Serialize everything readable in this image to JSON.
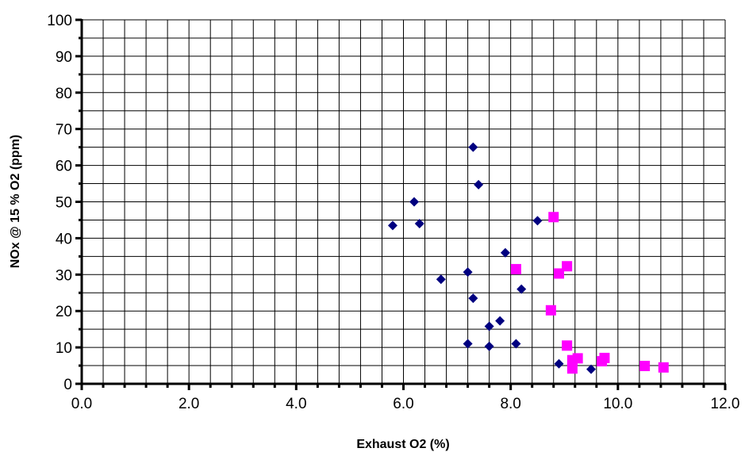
{
  "chart_data": {
    "type": "scatter",
    "title": "",
    "xlabel": "Exhaust O2 (%)",
    "ylabel": "NOx @ 15 % O2 (ppm)",
    "xlim": [
      0,
      12
    ],
    "ylim": [
      0,
      100
    ],
    "x_ticks": [
      "0.0",
      "2.0",
      "4.0",
      "6.0",
      "8.0",
      "10.0",
      "12.0"
    ],
    "y_ticks": [
      "0",
      "10",
      "20",
      "30",
      "40",
      "50",
      "60",
      "70",
      "80",
      "90",
      "100"
    ],
    "grid": true,
    "legend": "none",
    "series": [
      {
        "marker": "diamond",
        "color": "#000080",
        "points": [
          [
            5.8,
            43.5
          ],
          [
            6.2,
            50.0
          ],
          [
            6.3,
            44.0
          ],
          [
            6.7,
            28.7
          ],
          [
            7.2,
            30.7
          ],
          [
            7.2,
            11.0
          ],
          [
            7.3,
            65.0
          ],
          [
            7.3,
            23.5
          ],
          [
            7.4,
            54.7
          ],
          [
            7.6,
            15.8
          ],
          [
            7.6,
            10.3
          ],
          [
            7.8,
            17.3
          ],
          [
            7.9,
            36.0
          ],
          [
            8.1,
            11.0
          ],
          [
            8.2,
            26.0
          ],
          [
            8.5,
            44.8
          ],
          [
            8.9,
            5.5
          ],
          [
            9.5,
            4.0
          ]
        ]
      },
      {
        "marker": "square",
        "color": "#ff00ff",
        "points": [
          [
            8.1,
            31.5
          ],
          [
            8.75,
            20.2
          ],
          [
            8.8,
            45.8
          ],
          [
            8.9,
            30.3
          ],
          [
            9.05,
            32.3
          ],
          [
            9.05,
            10.5
          ],
          [
            9.15,
            6.5
          ],
          [
            9.15,
            4.2
          ],
          [
            9.25,
            7.0
          ],
          [
            9.7,
            6.2
          ],
          [
            9.75,
            7.1
          ],
          [
            10.5,
            4.9
          ],
          [
            10.85,
            4.5
          ]
        ]
      }
    ]
  }
}
